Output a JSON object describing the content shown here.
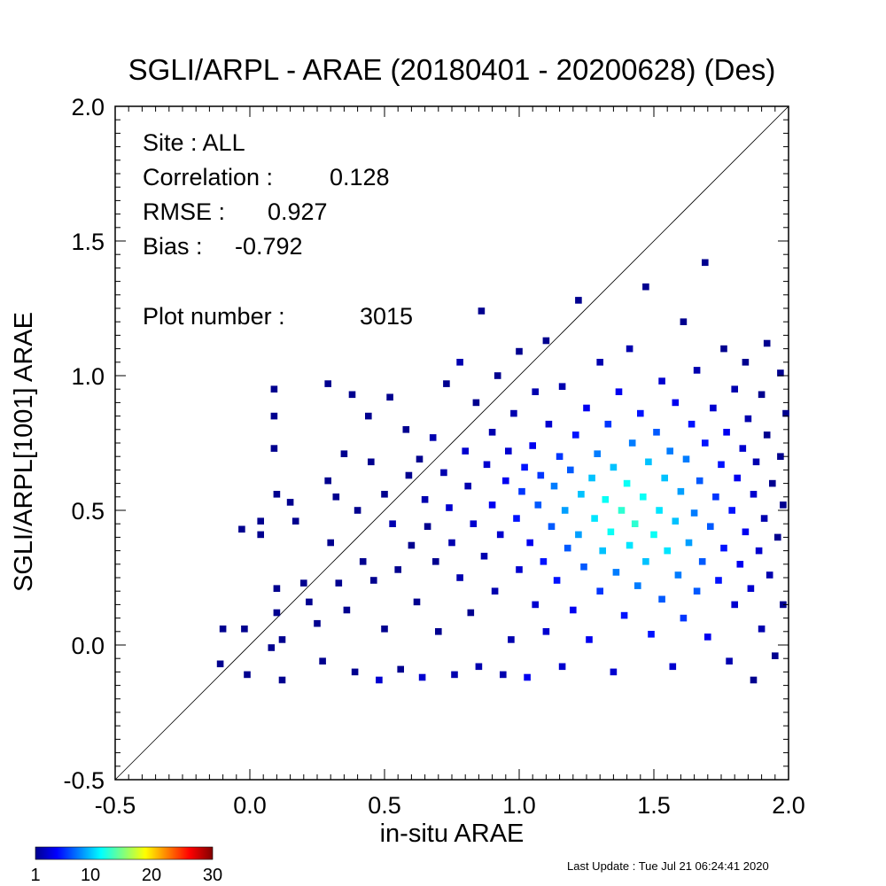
{
  "chart_data": {
    "type": "heatmap",
    "title": "SGLI/ARPL - ARAE (20180401 - 20200628) (Des)",
    "xlabel": "in-situ ARAE",
    "ylabel": "SGLI/ARPL[1001]    ARAE",
    "xlim": [
      -0.5,
      2.0
    ],
    "ylim": [
      -0.5,
      2.0
    ],
    "x_ticks": [
      "-0.5",
      "0.0",
      "0.5",
      "1.0",
      "1.5",
      "2.0"
    ],
    "y_ticks": [
      "-0.5",
      "0.0",
      "0.5",
      "1.0",
      "1.5",
      "2.0"
    ],
    "one_to_one_line": true,
    "stats": {
      "site_label": "Site : ALL",
      "correlation_label": "Correlation :",
      "correlation_value": "0.128",
      "rmse_label": "RMSE :",
      "rmse_value": "0.927",
      "bias_label": "Bias :",
      "bias_value": "-0.792",
      "plot_number_label": "Plot number :",
      "plot_number_value": "3015"
    },
    "bin_size": 0.025,
    "count_scale": [
      1,
      30
    ],
    "colorbar_ticks": [
      "1",
      "10",
      "20",
      "30"
    ],
    "cells": [
      [
        -0.1,
        0.06,
        1
      ],
      [
        -0.02,
        0.06,
        1
      ],
      [
        -0.11,
        -0.07,
        1
      ],
      [
        -0.01,
        -0.11,
        1
      ],
      [
        -0.03,
        0.43,
        1
      ],
      [
        0.04,
        0.46,
        1
      ],
      [
        0.04,
        0.41,
        1
      ],
      [
        0.09,
        0.95,
        1
      ],
      [
        0.09,
        0.85,
        1
      ],
      [
        0.09,
        0.73,
        1
      ],
      [
        0.1,
        0.56,
        1
      ],
      [
        0.1,
        0.21,
        1
      ],
      [
        0.1,
        0.12,
        1
      ],
      [
        0.12,
        0.02,
        1
      ],
      [
        0.12,
        -0.13,
        1
      ],
      [
        0.08,
        -0.01,
        1
      ],
      [
        0.15,
        0.53,
        1
      ],
      [
        0.17,
        0.46,
        1
      ],
      [
        0.2,
        0.23,
        1
      ],
      [
        0.22,
        0.16,
        1
      ],
      [
        0.25,
        0.08,
        1
      ],
      [
        0.27,
        -0.06,
        1
      ],
      [
        0.29,
        0.97,
        1
      ],
      [
        0.29,
        0.61,
        1
      ],
      [
        0.3,
        0.38,
        1
      ],
      [
        0.32,
        0.55,
        1
      ],
      [
        0.33,
        0.23,
        1
      ],
      [
        0.35,
        0.71,
        1
      ],
      [
        0.36,
        0.13,
        1
      ],
      [
        0.38,
        0.93,
        1
      ],
      [
        0.39,
        -0.1,
        1
      ],
      [
        0.4,
        0.5,
        1
      ],
      [
        0.42,
        0.31,
        1
      ],
      [
        0.44,
        0.85,
        1
      ],
      [
        0.45,
        0.68,
        1
      ],
      [
        0.46,
        0.24,
        1
      ],
      [
        0.48,
        -0.13,
        3
      ],
      [
        0.5,
        0.06,
        1
      ],
      [
        0.5,
        0.56,
        1
      ],
      [
        0.52,
        0.92,
        1
      ],
      [
        0.53,
        0.45,
        2
      ],
      [
        0.55,
        0.28,
        1
      ],
      [
        0.56,
        -0.09,
        1
      ],
      [
        0.58,
        0.8,
        1
      ],
      [
        0.59,
        0.63,
        1
      ],
      [
        0.6,
        0.37,
        1
      ],
      [
        0.62,
        0.16,
        1
      ],
      [
        0.63,
        0.69,
        1
      ],
      [
        0.64,
        -0.12,
        3
      ],
      [
        0.65,
        0.54,
        2
      ],
      [
        0.66,
        0.44,
        1
      ],
      [
        0.68,
        0.77,
        2
      ],
      [
        0.69,
        0.31,
        1
      ],
      [
        0.7,
        0.05,
        1
      ],
      [
        0.72,
        0.64,
        2
      ],
      [
        0.73,
        0.97,
        1
      ],
      [
        0.74,
        0.51,
        3
      ],
      [
        0.75,
        0.38,
        2
      ],
      [
        0.76,
        -0.11,
        2
      ],
      [
        0.78,
        1.05,
        2
      ],
      [
        0.78,
        0.25,
        2
      ],
      [
        0.8,
        0.72,
        3
      ],
      [
        0.81,
        0.59,
        2
      ],
      [
        0.82,
        0.12,
        1
      ],
      [
        0.83,
        0.45,
        3
      ],
      [
        0.84,
        0.9,
        1
      ],
      [
        0.85,
        -0.08,
        2
      ],
      [
        0.86,
        1.24,
        1
      ],
      [
        0.87,
        0.33,
        2
      ],
      [
        0.88,
        0.67,
        3
      ],
      [
        0.9,
        0.79,
        2
      ],
      [
        0.9,
        0.52,
        4
      ],
      [
        0.91,
        0.2,
        2
      ],
      [
        0.92,
        1.0,
        1
      ],
      [
        0.93,
        0.41,
        3
      ],
      [
        0.94,
        -0.11,
        2
      ],
      [
        0.95,
        0.61,
        4
      ],
      [
        0.96,
        0.72,
        3
      ],
      [
        0.97,
        0.02,
        2
      ],
      [
        0.98,
        0.86,
        2
      ],
      [
        0.99,
        0.47,
        5
      ],
      [
        1.0,
        0.28,
        3
      ],
      [
        1.0,
        1.09,
        1
      ],
      [
        1.01,
        0.57,
        6
      ],
      [
        1.02,
        0.66,
        5
      ],
      [
        1.03,
        -0.12,
        4
      ],
      [
        1.04,
        0.38,
        4
      ],
      [
        1.05,
        0.74,
        4
      ],
      [
        1.06,
        0.15,
        3
      ],
      [
        1.06,
        0.94,
        2
      ],
      [
        1.07,
        0.52,
        7
      ],
      [
        1.08,
        0.63,
        6
      ],
      [
        1.09,
        0.31,
        5
      ],
      [
        1.1,
        1.13,
        1
      ],
      [
        1.1,
        0.05,
        3
      ],
      [
        1.11,
        0.82,
        3
      ],
      [
        1.12,
        0.44,
        7
      ],
      [
        1.13,
        0.59,
        8
      ],
      [
        1.14,
        0.24,
        5
      ],
      [
        1.15,
        0.7,
        6
      ],
      [
        1.16,
        -0.08,
        3
      ],
      [
        1.16,
        0.96,
        2
      ],
      [
        1.17,
        0.5,
        9
      ],
      [
        1.18,
        0.36,
        7
      ],
      [
        1.19,
        0.65,
        7
      ],
      [
        1.2,
        0.13,
        4
      ],
      [
        1.21,
        0.78,
        5
      ],
      [
        1.22,
        0.41,
        9
      ],
      [
        1.22,
        1.28,
        1
      ],
      [
        1.23,
        0.56,
        10
      ],
      [
        1.24,
        0.29,
        7
      ],
      [
        1.25,
        0.88,
        4
      ],
      [
        1.26,
        0.02,
        4
      ],
      [
        1.27,
        0.62,
        10
      ],
      [
        1.28,
        0.47,
        11
      ],
      [
        1.29,
        0.71,
        8
      ],
      [
        1.3,
        1.05,
        2
      ],
      [
        1.3,
        0.2,
        6
      ],
      [
        1.31,
        0.35,
        10
      ],
      [
        1.32,
        0.54,
        12
      ],
      [
        1.33,
        0.82,
        6
      ],
      [
        1.34,
        0.42,
        12
      ],
      [
        1.35,
        -0.1,
        3
      ],
      [
        1.35,
        0.66,
        10
      ],
      [
        1.36,
        0.27,
        8
      ],
      [
        1.37,
        0.94,
        4
      ],
      [
        1.38,
        0.5,
        13
      ],
      [
        1.39,
        0.11,
        5
      ],
      [
        1.4,
        0.6,
        12
      ],
      [
        1.41,
        0.37,
        11
      ],
      [
        1.41,
        1.1,
        2
      ],
      [
        1.42,
        0.75,
        8
      ],
      [
        1.43,
        0.45,
        13
      ],
      [
        1.44,
        0.22,
        8
      ],
      [
        1.45,
        0.86,
        5
      ],
      [
        1.46,
        0.55,
        12
      ],
      [
        1.47,
        0.31,
        10
      ],
      [
        1.47,
        1.33,
        1
      ],
      [
        1.48,
        0.68,
        10
      ],
      [
        1.49,
        0.04,
        5
      ],
      [
        1.5,
        0.41,
        12
      ],
      [
        1.51,
        0.79,
        7
      ],
      [
        1.52,
        0.5,
        11
      ],
      [
        1.53,
        0.17,
        7
      ],
      [
        1.53,
        0.98,
        3
      ],
      [
        1.54,
        0.62,
        10
      ],
      [
        1.55,
        0.35,
        11
      ],
      [
        1.56,
        0.72,
        8
      ],
      [
        1.57,
        -0.08,
        3
      ],
      [
        1.58,
        0.46,
        10
      ],
      [
        1.58,
        0.9,
        4
      ],
      [
        1.59,
        0.26,
        8
      ],
      [
        1.6,
        0.57,
        9
      ],
      [
        1.61,
        1.2,
        1
      ],
      [
        1.61,
        0.1,
        6
      ],
      [
        1.62,
        0.69,
        8
      ],
      [
        1.63,
        0.38,
        9
      ],
      [
        1.64,
        0.82,
        5
      ],
      [
        1.65,
        0.49,
        8
      ],
      [
        1.66,
        0.2,
        7
      ],
      [
        1.66,
        1.02,
        2
      ],
      [
        1.67,
        0.61,
        7
      ],
      [
        1.68,
        0.31,
        7
      ],
      [
        1.69,
        0.75,
        5
      ],
      [
        1.69,
        1.42,
        1
      ],
      [
        1.7,
        0.03,
        4
      ],
      [
        1.71,
        0.44,
        7
      ],
      [
        1.72,
        0.88,
        3
      ],
      [
        1.73,
        0.55,
        6
      ],
      [
        1.74,
        0.24,
        5
      ],
      [
        1.75,
        0.67,
        5
      ],
      [
        1.76,
        1.1,
        1
      ],
      [
        1.76,
        0.36,
        5
      ],
      [
        1.77,
        0.79,
        4
      ],
      [
        1.78,
        -0.06,
        2
      ],
      [
        1.79,
        0.5,
        5
      ],
      [
        1.8,
        0.15,
        3
      ],
      [
        1.8,
        0.95,
        2
      ],
      [
        1.81,
        0.62,
        4
      ],
      [
        1.82,
        0.3,
        4
      ],
      [
        1.83,
        0.73,
        3
      ],
      [
        1.84,
        1.05,
        1
      ],
      [
        1.84,
        0.42,
        4
      ],
      [
        1.85,
        0.84,
        2
      ],
      [
        1.86,
        0.21,
        3
      ],
      [
        1.87,
        0.56,
        3
      ],
      [
        1.87,
        -0.13,
        1
      ],
      [
        1.88,
        0.68,
        2
      ],
      [
        1.89,
        0.35,
        3
      ],
      [
        1.9,
        0.06,
        2
      ],
      [
        1.9,
        0.93,
        1
      ],
      [
        1.91,
        0.47,
        2
      ],
      [
        1.92,
        0.78,
        1
      ],
      [
        1.92,
        1.12,
        1
      ],
      [
        1.93,
        0.26,
        2
      ],
      [
        1.94,
        0.6,
        1
      ],
      [
        1.95,
        -0.04,
        1
      ],
      [
        1.96,
        0.4,
        1
      ],
      [
        1.97,
        0.7,
        1
      ],
      [
        1.97,
        1.01,
        1
      ],
      [
        1.98,
        0.15,
        1
      ],
      [
        1.98,
        0.52,
        1
      ],
      [
        1.99,
        0.86,
        1
      ]
    ],
    "footer": "Last Update : Tue Jul 21 06:24:41 2020"
  }
}
